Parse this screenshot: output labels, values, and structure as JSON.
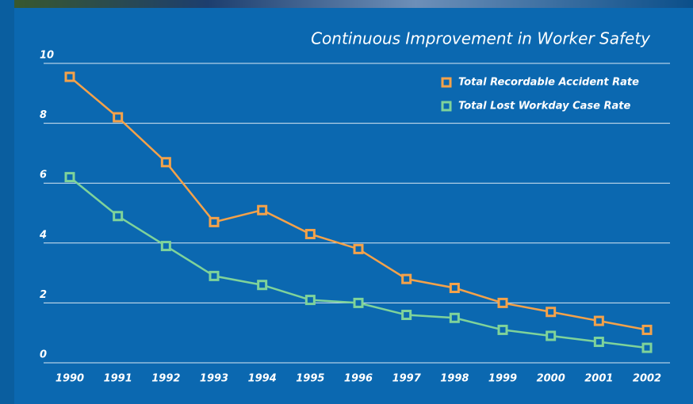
{
  "chart_data": {
    "type": "line",
    "title": "Continuous Improvement in Worker Safety",
    "categories": [
      "1990",
      "1991",
      "1992",
      "1993",
      "1994",
      "1995",
      "1996",
      "1997",
      "1998",
      "1999",
      "2000",
      "2001",
      "2002"
    ],
    "series": [
      {
        "name": "Total Recordable Accident Rate",
        "color": "#f4a24a",
        "values": [
          9.55,
          8.2,
          6.7,
          4.7,
          5.1,
          4.3,
          3.8,
          2.8,
          2.5,
          2.0,
          1.7,
          1.4,
          1.1
        ]
      },
      {
        "name": "Total Lost Workday Case Rate",
        "color": "#7fd39a",
        "values": [
          6.2,
          4.9,
          3.9,
          2.9,
          2.6,
          2.1,
          2.0,
          1.6,
          1.5,
          1.1,
          0.9,
          0.7,
          0.5
        ]
      }
    ],
    "ylim": [
      0,
      10
    ],
    "yticks": [
      0,
      2,
      4,
      6,
      8,
      10
    ],
    "grid": true,
    "legend": "top-right"
  }
}
